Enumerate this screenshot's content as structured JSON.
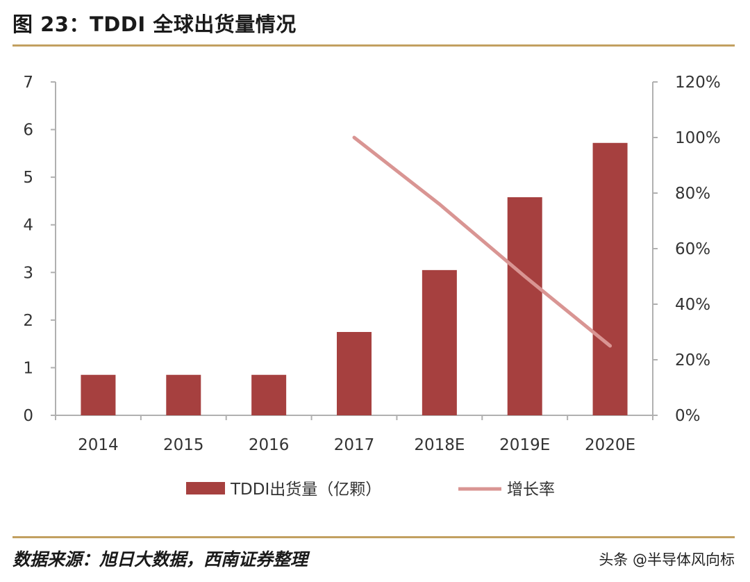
{
  "header": {
    "title": "图 23：TDDI 全球出货量情况"
  },
  "footer": {
    "source": "数据来源：旭日大数据，西南证券整理",
    "watermark": "头条 @半导体风向标"
  },
  "chart_data": {
    "type": "bar",
    "categories": [
      "2014",
      "2015",
      "2016",
      "2017",
      "2018E",
      "2019E",
      "2020E"
    ],
    "series": [
      {
        "name": "TDDI出货量（亿颗）",
        "type": "bar",
        "axis": "left",
        "values": [
          0.85,
          0.85,
          0.85,
          1.75,
          3.05,
          4.58,
          5.72
        ]
      },
      {
        "name": "增长率",
        "type": "line",
        "axis": "right",
        "values": [
          null,
          null,
          null,
          1.0,
          0.76,
          0.5,
          0.25
        ]
      }
    ],
    "y_left": {
      "ylim": [
        0,
        7
      ],
      "ticks": [
        "0",
        "1",
        "2",
        "3",
        "4",
        "5",
        "6",
        "7"
      ]
    },
    "y_right": {
      "ylim": [
        0,
        1.2
      ],
      "ticks": [
        "0%",
        "20%",
        "40%",
        "60%",
        "80%",
        "100%",
        "120%"
      ]
    },
    "legend_position": "bottom",
    "colors": {
      "bar": "#a6403f",
      "line": "#d99593",
      "axis": "#b0b0b0"
    }
  }
}
